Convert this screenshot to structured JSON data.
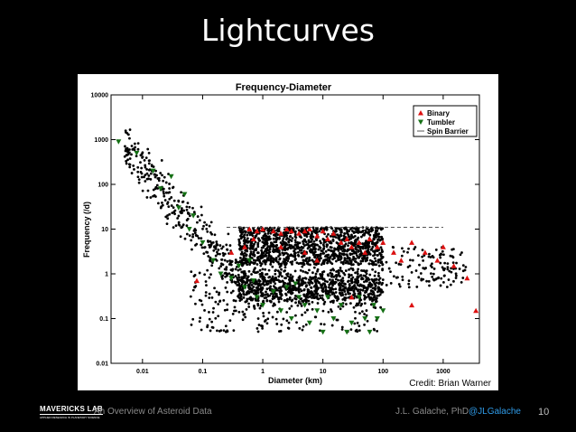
{
  "slide": {
    "title": "Lightcurves",
    "credit": "Credit: Brian Warner",
    "footer_left": "An Overview of Asteroid Data",
    "footer_author": "J.L. Galache, PhD",
    "footer_handle": "@JLGalache",
    "page_number": "10",
    "logo_text": "MAVERICKS LAB",
    "logo_subtext": "APPLIED RESEARCH IN PLANETARY SCIENCE"
  },
  "chart_data": {
    "type": "scatter",
    "title": "Frequency-Diameter",
    "xlabel": "Diameter (km)",
    "ylabel": "Frequency (/d)",
    "x_scale": "log",
    "y_scale": "log",
    "xlim": [
      0.003,
      4000
    ],
    "ylim": [
      0.01,
      10000
    ],
    "x_ticks": [
      "0.01",
      "0.1",
      "1",
      "10",
      "100",
      "1000"
    ],
    "y_ticks": [
      "10000",
      "1000",
      "100",
      "10",
      "1",
      "0.1",
      "0.01"
    ],
    "legend_position": "top-right",
    "colors": {
      "general": "#000000",
      "binary": "#dd1111",
      "tumbler": "#157015",
      "spin_barrier": "#555555"
    },
    "series": [
      {
        "name": "Binary",
        "marker": "triangle-up",
        "color": "#dd1111",
        "points": [
          [
            0.6,
            10
          ],
          [
            0.8,
            9
          ],
          [
            1,
            10
          ],
          [
            1.5,
            9
          ],
          [
            2,
            8
          ],
          [
            2.5,
            10
          ],
          [
            3,
            9
          ],
          [
            4,
            8
          ],
          [
            5,
            9
          ],
          [
            6,
            10
          ],
          [
            8,
            7
          ],
          [
            10,
            9
          ],
          [
            12,
            6
          ],
          [
            15,
            8
          ],
          [
            20,
            5
          ],
          [
            25,
            6
          ],
          [
            30,
            4
          ],
          [
            40,
            5
          ],
          [
            50,
            3
          ],
          [
            60,
            6
          ],
          [
            0.3,
            3
          ],
          [
            0.5,
            4
          ],
          [
            0.7,
            6
          ],
          [
            2,
            4
          ],
          [
            5,
            3
          ],
          [
            8,
            2
          ],
          [
            80,
            4
          ],
          [
            100,
            5
          ],
          [
            150,
            3
          ],
          [
            200,
            2
          ],
          [
            300,
            5
          ],
          [
            500,
            3
          ],
          [
            800,
            2
          ],
          [
            1000,
            4
          ],
          [
            1500,
            1.5
          ],
          [
            2500,
            0.8
          ],
          [
            3500,
            0.15
          ],
          [
            300,
            0.2
          ],
          [
            30,
            0.3
          ],
          [
            0.08,
            0.7
          ]
        ]
      },
      {
        "name": "Tumbler",
        "marker": "triangle-down",
        "color": "#157015",
        "points": [
          [
            0.004,
            900
          ],
          [
            0.008,
            500
          ],
          [
            0.015,
            200
          ],
          [
            0.02,
            80
          ],
          [
            0.03,
            150
          ],
          [
            0.04,
            30
          ],
          [
            0.05,
            60
          ],
          [
            0.06,
            10
          ],
          [
            0.07,
            20
          ],
          [
            0.1,
            5
          ],
          [
            0.15,
            2
          ],
          [
            0.2,
            1
          ],
          [
            0.3,
            0.8
          ],
          [
            0.5,
            0.5
          ],
          [
            0.8,
            0.3
          ],
          [
            1,
            0.2
          ],
          [
            1.5,
            0.4
          ],
          [
            2,
            0.15
          ],
          [
            3,
            0.1
          ],
          [
            4,
            0.3
          ],
          [
            5,
            0.2
          ],
          [
            6,
            0.08
          ],
          [
            8,
            0.15
          ],
          [
            10,
            0.05
          ],
          [
            12,
            0.3
          ],
          [
            15,
            0.1
          ],
          [
            20,
            0.2
          ],
          [
            25,
            0.05
          ],
          [
            30,
            0.08
          ],
          [
            40,
            0.3
          ],
          [
            50,
            0.1
          ],
          [
            60,
            0.05
          ],
          [
            70,
            0.2
          ],
          [
            80,
            0.1
          ],
          [
            100,
            0.15
          ],
          [
            0.4,
            1.5
          ],
          [
            0.6,
            2
          ],
          [
            0.7,
            0.7
          ],
          [
            2.5,
            0.5
          ],
          [
            3.5,
            0.6
          ]
        ]
      },
      {
        "name": "Spin Barrier",
        "marker": "line",
        "color": "#555555",
        "points": [
          [
            0.25,
            11
          ],
          [
            1000,
            11
          ]
        ]
      }
    ]
  }
}
